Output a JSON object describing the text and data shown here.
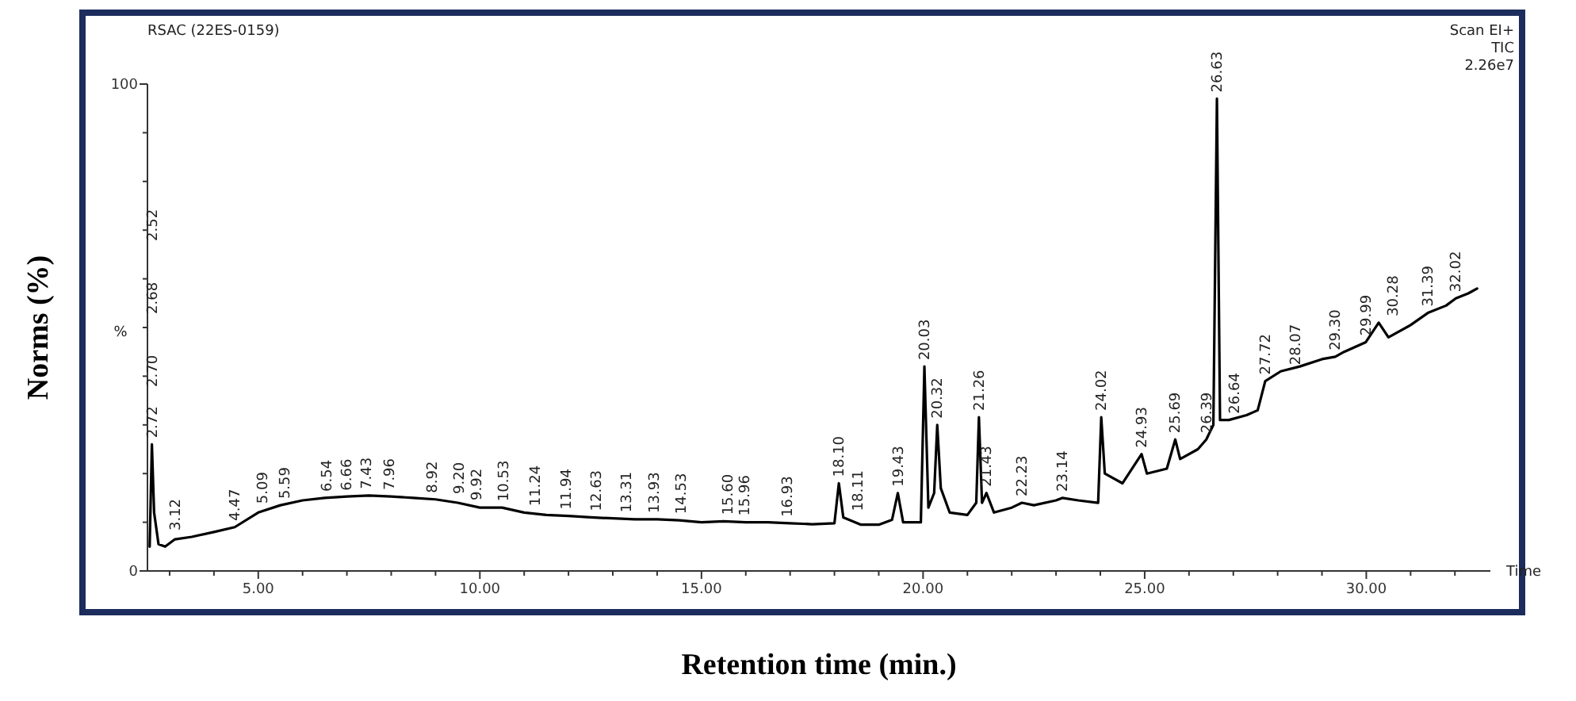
{
  "chart_data": {
    "type": "line",
    "xlabel": "Retention time (min.)",
    "ylabel": "Norms (%)",
    "xlim": [
      2.5,
      32.8
    ],
    "ylim": [
      0,
      100
    ],
    "xticks": [
      {
        "value": 3,
        "label": null
      },
      {
        "value": 4,
        "label": null
      },
      {
        "value": 5,
        "label": "5.00"
      },
      {
        "value": 6,
        "label": null
      },
      {
        "value": 7,
        "label": null
      },
      {
        "value": 8,
        "label": null
      },
      {
        "value": 9,
        "label": null
      },
      {
        "value": 10,
        "label": "10.00"
      },
      {
        "value": 11,
        "label": null
      },
      {
        "value": 12,
        "label": null
      },
      {
        "value": 13,
        "label": null
      },
      {
        "value": 14,
        "label": null
      },
      {
        "value": 15,
        "label": "15.00"
      },
      {
        "value": 16,
        "label": null
      },
      {
        "value": 17,
        "label": null
      },
      {
        "value": 18,
        "label": null
      },
      {
        "value": 19,
        "label": null
      },
      {
        "value": 20,
        "label": "20.00"
      },
      {
        "value": 21,
        "label": null
      },
      {
        "value": 22,
        "label": null
      },
      {
        "value": 23,
        "label": null
      },
      {
        "value": 24,
        "label": null
      },
      {
        "value": 25,
        "label": "25.00"
      },
      {
        "value": 26,
        "label": null
      },
      {
        "value": 27,
        "label": null
      },
      {
        "value": 28,
        "label": null
      },
      {
        "value": 29,
        "label": null
      },
      {
        "value": 30,
        "label": "30.00"
      },
      {
        "value": 31,
        "label": null
      },
      {
        "value": 32,
        "label": null
      }
    ],
    "yticks": [
      0,
      {
        "value": 10,
        "label": null
      },
      {
        "value": 20,
        "label": null
      },
      {
        "value": 30,
        "label": null
      },
      {
        "value": 40,
        "label": null
      },
      {
        "value": 50,
        "label": null
      },
      {
        "value": 60,
        "label": null
      },
      {
        "value": 70,
        "label": null
      },
      {
        "value": 80,
        "label": null
      },
      {
        "value": 90,
        "label": null
      },
      100
    ],
    "grid": false,
    "marker": "none",
    "line_style": "solid",
    "series": [
      {
        "color": "#000000",
        "x": [
          2.55,
          2.6,
          2.65,
          2.75,
          2.9,
          3.12,
          3.5,
          4,
          4.47,
          5,
          5.5,
          6,
          6.5,
          7,
          7.5,
          8,
          8.5,
          9,
          9.5,
          10,
          10.5,
          11,
          11.5,
          12,
          12.5,
          13,
          13.5,
          14,
          14.5,
          15,
          15.5,
          16,
          16.5,
          17,
          17.5,
          18,
          18.1,
          18.2,
          18.6,
          19,
          19.3,
          19.43,
          19.55,
          19.95,
          20.03,
          20.12,
          20.25,
          20.32,
          20.4,
          20.6,
          21,
          21.2,
          21.26,
          21.33,
          21.43,
          21.6,
          22,
          22.23,
          22.5,
          23,
          23.14,
          23.5,
          23.95,
          24.02,
          24.1,
          24.5,
          24.93,
          25.05,
          25.5,
          25.69,
          25.8,
          26.2,
          26.39,
          26.55,
          26.63,
          26.7,
          26.9,
          27.3,
          27.55,
          27.72,
          28.07,
          28.5,
          29,
          29.3,
          29.5,
          29.99,
          30.28,
          30.5,
          31,
          31.39,
          31.8,
          32.02,
          32.3,
          32.5
        ],
        "values": [
          5,
          26,
          12,
          5.5,
          5,
          6.5,
          7,
          8,
          9,
          12,
          13.5,
          14.5,
          15,
          15.3,
          15.5,
          15.3,
          15,
          14.7,
          14,
          13,
          13,
          12,
          11.5,
          11.3,
          11,
          10.8,
          10.6,
          10.6,
          10.4,
          10,
          10.2,
          10,
          10,
          9.8,
          9.6,
          9.8,
          18,
          11,
          9.5,
          9.5,
          10.5,
          16,
          10,
          10,
          42,
          13,
          16,
          30,
          17,
          12,
          11.5,
          14,
          31.6,
          14,
          16,
          12,
          13,
          14,
          13.5,
          14.5,
          15,
          14.5,
          14,
          31.6,
          20,
          18,
          24,
          20,
          21,
          27,
          23,
          25,
          27,
          30,
          97,
          31,
          31,
          32,
          33,
          39,
          41,
          42,
          43.5,
          44,
          45,
          47,
          51,
          48,
          50.5,
          53,
          54.5,
          56,
          57,
          58
        ]
      }
    ],
    "annotations": [
      "RSAC (22ES-0159)",
      "Scan EI+",
      "TIC",
      "2.26e7",
      "%",
      "Time",
      "2.70",
      "2.68",
      "2.52",
      {
        "text": "2.72",
        "x": 2.6,
        "y": 26
      },
      {
        "text": "3.12",
        "x": 3.12,
        "y": 7
      },
      {
        "text": "4.47",
        "x": 4.47,
        "y": 9
      },
      {
        "text": "5.09",
        "x": 5.09,
        "y": 12.5
      },
      {
        "text": "5.59",
        "x": 5.59,
        "y": 13.5
      },
      {
        "text": "6.54",
        "x": 6.54,
        "y": 15
      },
      {
        "text": "6.66",
        "x": 6.66,
        "y": 15.2
      },
      {
        "text": "7.43",
        "x": 7.43,
        "y": 15.5
      },
      {
        "text": "7.96",
        "x": 7.96,
        "y": 15.3
      },
      {
        "text": "8.92",
        "x": 8.92,
        "y": 14.7
      },
      {
        "text": "9.20",
        "x": 9.2,
        "y": 14.5
      },
      {
        "text": "9.92",
        "x": 9.92,
        "y": 13.2
      },
      {
        "text": "10.53",
        "x": 10.53,
        "y": 13
      },
      {
        "text": "11.24",
        "x": 11.24,
        "y": 12
      },
      {
        "text": "11.94",
        "x": 11.94,
        "y": 11.3
      },
      {
        "text": "12.63",
        "x": 12.63,
        "y": 11
      },
      {
        "text": "13.31",
        "x": 13.31,
        "y": 10.7
      },
      {
        "text": "13.93",
        "x": 13.93,
        "y": 10.6
      },
      {
        "text": "14.53",
        "x": 14.53,
        "y": 10.4
      },
      {
        "text": "15.60",
        "x": 15.6,
        "y": 10.2
      },
      {
        "text": "15.96",
        "x": 15.96,
        "y": 10
      },
      {
        "text": "16.93",
        "x": 16.93,
        "y": 9.8
      },
      {
        "text": "18.10",
        "x": 18.1,
        "y": 18
      },
      {
        "text": "18.11",
        "x": 18.2,
        "y": 11
      },
      {
        "text": "19.43",
        "x": 19.43,
        "y": 16
      },
      {
        "text": "20.03",
        "x": 20.03,
        "y": 42
      },
      {
        "text": "20.32",
        "x": 20.32,
        "y": 30
      },
      {
        "text": "21.26",
        "x": 21.26,
        "y": 31.6
      },
      {
        "text": "21.43",
        "x": 21.43,
        "y": 16
      },
      {
        "text": "22.23",
        "x": 22.23,
        "y": 14
      },
      {
        "text": "23.14",
        "x": 23.14,
        "y": 15
      },
      {
        "text": "24.02",
        "x": 24.02,
        "y": 31.6
      },
      {
        "text": "24.93",
        "x": 24.93,
        "y": 24
      },
      {
        "text": "25.69",
        "x": 25.69,
        "y": 27
      },
      {
        "text": "26.39",
        "x": 26.39,
        "y": 27
      },
      {
        "text": "26.63",
        "x": 26.63,
        "y": 97
      },
      {
        "text": "26.64",
        "x": 26.7,
        "y": 31
      },
      {
        "text": "27.72",
        "x": 27.72,
        "y": 39
      },
      {
        "text": "28.07",
        "x": 28.07,
        "y": 41
      },
      {
        "text": "29.30",
        "x": 29.3,
        "y": 44
      },
      {
        "text": "29.99",
        "x": 29.99,
        "y": 47
      },
      {
        "text": "30.28",
        "x": 30.28,
        "y": 51
      },
      {
        "text": "31.39",
        "x": 31.39,
        "y": 53
      },
      {
        "text": "32.02",
        "x": 32.02,
        "y": 56
      }
    ]
  }
}
